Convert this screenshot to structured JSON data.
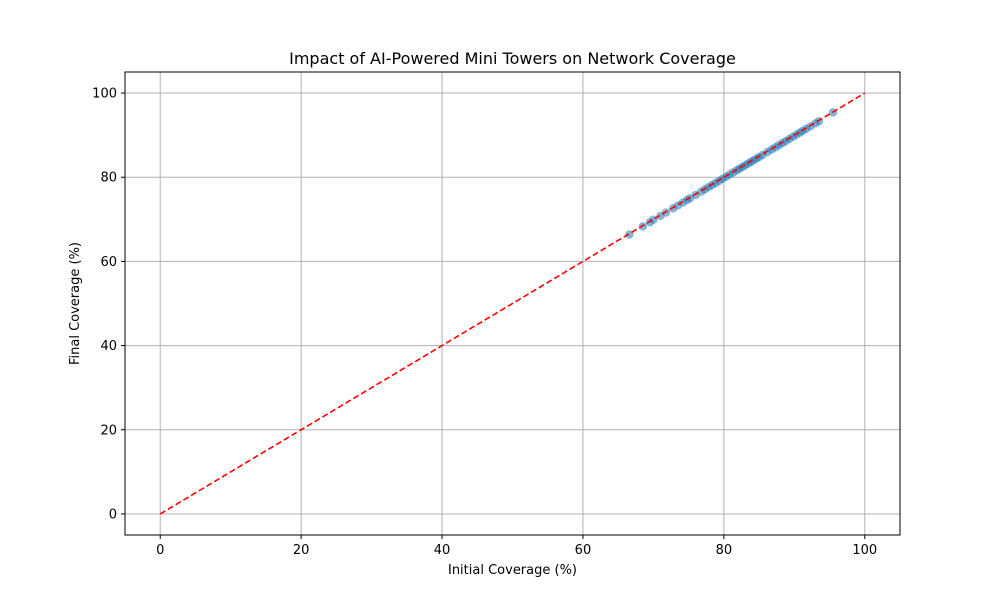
{
  "chart_data": {
    "type": "scatter",
    "title": "Impact of AI-Powered Mini Towers on Network Coverage",
    "xlabel": "Initial Coverage (%)",
    "ylabel": "Final Coverage (%)",
    "xlim": [
      -5,
      105
    ],
    "ylim": [
      -5,
      105
    ],
    "xticks": [
      0,
      20,
      40,
      60,
      80,
      100
    ],
    "yticks": [
      0,
      20,
      40,
      60,
      80,
      100
    ],
    "grid": true,
    "colors": {
      "points": "#1f77b4",
      "reference_line": "#ff0000",
      "grid": "#b0b0b0"
    },
    "reference_line": {
      "style": "dashed",
      "x": [
        0,
        100
      ],
      "y": [
        0,
        100
      ]
    },
    "points": {
      "x": [
        66.6,
        68.5,
        69.5,
        70.0,
        71.0,
        71.8,
        72.8,
        73.5,
        74.2,
        74.8,
        75.2,
        76.0,
        76.8,
        77.3,
        77.8,
        78.3,
        78.8,
        79.3,
        79.8,
        80.3,
        80.8,
        81.3,
        81.8,
        82.2,
        82.6,
        83.0,
        83.4,
        83.8,
        84.2,
        84.6,
        85.0,
        85.5,
        86.2,
        86.8,
        87.3,
        87.8,
        88.3,
        88.8,
        89.3,
        89.8,
        90.3,
        90.8,
        91.2,
        91.7,
        92.3,
        93.0,
        93.5,
        95.5
      ],
      "y": [
        66.4,
        68.3,
        69.3,
        69.9,
        70.8,
        71.6,
        72.6,
        73.3,
        74.0,
        74.6,
        75.0,
        75.8,
        76.6,
        77.1,
        77.6,
        78.1,
        78.6,
        79.1,
        79.6,
        80.1,
        80.6,
        81.1,
        81.6,
        82.0,
        82.4,
        82.8,
        83.2,
        83.6,
        84.0,
        84.4,
        84.8,
        85.3,
        86.0,
        86.6,
        87.1,
        87.6,
        88.1,
        88.6,
        89.1,
        89.6,
        90.1,
        90.6,
        91.0,
        91.5,
        92.1,
        92.8,
        93.3,
        95.4
      ]
    }
  }
}
